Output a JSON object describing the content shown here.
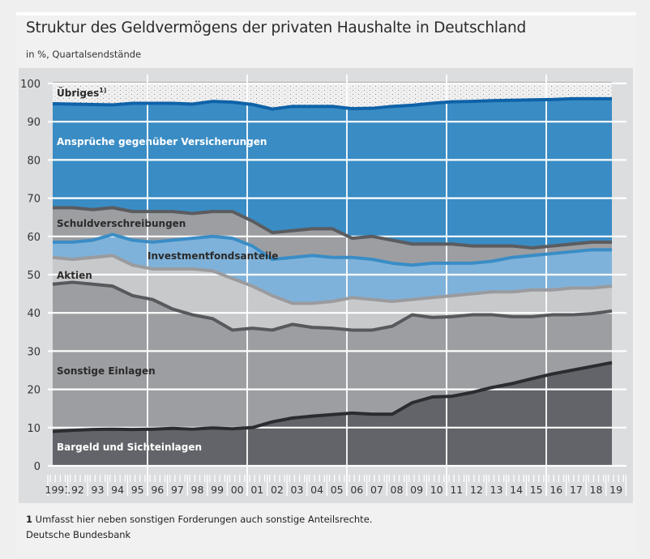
{
  "header": {
    "title": "Struktur des Geldvermögens der privaten Haushalte in Deutschland",
    "subtitle": "in %, Quartalsendstände"
  },
  "footer": {
    "footnote_number": "1",
    "footnote_text": "Umfasst hier neben sonstigen Forderungen auch sonstige Anteilsrechte.",
    "source": "Deutsche Bundesbank"
  },
  "chart_data": {
    "type": "area",
    "stacked": true,
    "title": "Struktur des Geldvermögens der privaten Haushalte in Deutschland",
    "subtitle": "in %, Quartalsendstände",
    "xlabel": "",
    "ylabel": "",
    "ylim": [
      0,
      100
    ],
    "yticks": [
      "0",
      "10",
      "20",
      "30",
      "40",
      "50",
      "60",
      "70",
      "80",
      "90",
      "100"
    ],
    "xtick_labels": [
      "1991",
      "92",
      "93",
      "94",
      "95",
      "96",
      "97",
      "98",
      "99",
      "00",
      "01",
      "02",
      "03",
      "04",
      "05",
      "06",
      "07",
      "08",
      "09",
      "10",
      "11",
      "12",
      "13",
      "14",
      "15",
      "16",
      "17",
      "18",
      "19"
    ],
    "x": [
      1991,
      1992,
      1993,
      1994,
      1995,
      1996,
      1997,
      1998,
      1999,
      2000,
      2001,
      2002,
      2003,
      2004,
      2005,
      2006,
      2007,
      2008,
      2009,
      2010,
      2011,
      2012,
      2013,
      2014,
      2015,
      2016,
      2017,
      2018,
      2019
    ],
    "grid": true,
    "legend": "inline-labels",
    "cumulative_upper_bounds_note": "values are the cumulative upper boundary of each stacked layer (in %)",
    "series": [
      {
        "name": "Bargeld und Sichteinlagen",
        "color": "#636469",
        "line_color": "#2b2c30",
        "cumulative": [
          9,
          9.3,
          9.5,
          9.6,
          9.5,
          9.6,
          9.8,
          9.6,
          9.9,
          9.7,
          10,
          11.5,
          12.5,
          13,
          13.4,
          13.8,
          13.5,
          13.5,
          16.5,
          18,
          18.2,
          19.2,
          20.5,
          21.5,
          22.8,
          24,
          25,
          26,
          27
        ]
      },
      {
        "name": "Sonstige Einlagen",
        "color": "#9d9ea2",
        "line_color": "#58595d",
        "cumulative": [
          47.5,
          48,
          47.5,
          47,
          44.5,
          43.5,
          41,
          39.5,
          38.5,
          35.5,
          36,
          35.5,
          37,
          36.2,
          36,
          35.5,
          35.5,
          36.5,
          39.5,
          38.8,
          39,
          39.5,
          39.5,
          39,
          39,
          39.5,
          39.5,
          39.8,
          40.5
        ]
      },
      {
        "name": "Aktien",
        "color": "#c8c9cb",
        "line_color": "#9a9b9f",
        "cumulative": [
          54.5,
          54,
          54.5,
          55,
          52.5,
          51.5,
          51.5,
          51.5,
          51,
          49,
          47,
          44.5,
          42.5,
          42.5,
          43,
          44,
          43.5,
          43,
          43.5,
          44,
          44.5,
          45,
          45.5,
          45.5,
          46,
          46,
          46.5,
          46.5,
          47
        ]
      },
      {
        "name": "Investmentfondsanteile",
        "color": "#7fb2da",
        "line_color": "#3a8dc6",
        "cumulative": [
          58.5,
          58.5,
          59,
          60.5,
          59,
          58.5,
          59,
          59.5,
          60,
          59.5,
          57.5,
          54,
          54.5,
          55,
          54.5,
          54.5,
          54,
          53,
          52.5,
          53,
          53,
          53,
          53.5,
          54.5,
          55,
          55.5,
          56,
          56.5,
          56.5
        ]
      },
      {
        "name": "Schuldverschreibungen",
        "color": "#9d9ea2",
        "line_color": "#5b5c60",
        "cumulative": [
          67.5,
          67.5,
          67,
          67.5,
          66.5,
          66.5,
          66.5,
          66,
          66.5,
          66.5,
          64,
          61,
          61.5,
          62,
          62,
          59.5,
          60,
          59,
          58,
          58,
          58,
          57.5,
          57.5,
          57.5,
          57,
          57.5,
          58,
          58.5,
          58.5
        ]
      },
      {
        "name": "Ansprüche gegenüber Versicherungen",
        "color": "#3a8cc4",
        "line_color": "#0e62a8",
        "cumulative": [
          94.7,
          94.6,
          94.5,
          94.4,
          94.8,
          94.8,
          94.8,
          94.6,
          95.3,
          95.1,
          94.5,
          93.3,
          94,
          94,
          94,
          93.4,
          93.5,
          94,
          94.3,
          94.8,
          95.2,
          95.3,
          95.5,
          95.6,
          95.7,
          95.8,
          96,
          96,
          96
        ]
      },
      {
        "name": "Übriges",
        "superscript": "1)",
        "color": "#f0f0f0",
        "pattern": "dotted",
        "cumulative": [
          100,
          100,
          100,
          100,
          100,
          100,
          100,
          100,
          100,
          100,
          100,
          100,
          100,
          100,
          100,
          100,
          100,
          100,
          100,
          100,
          100,
          100,
          100,
          100,
          100,
          100,
          100,
          100,
          100
        ]
      }
    ],
    "annotations": [
      {
        "text": "Übriges",
        "sup": "1)",
        "series": "Übriges"
      },
      {
        "text": "Ansprüche gegenüber Versicherungen",
        "series": "Ansprüche gegenüber Versicherungen"
      },
      {
        "text": "Schuldverschreibungen",
        "series": "Schuldverschreibungen"
      },
      {
        "text": "Investmentfondsanteile",
        "series": "Investmentfondsanteile"
      },
      {
        "text": "Aktien",
        "series": "Aktien"
      },
      {
        "text": "Sonstige Einlagen",
        "series": "Sonstige Einlagen"
      },
      {
        "text": "Bargeld und Sichteinlagen",
        "series": "Bargeld und Sichteinlagen"
      }
    ]
  }
}
